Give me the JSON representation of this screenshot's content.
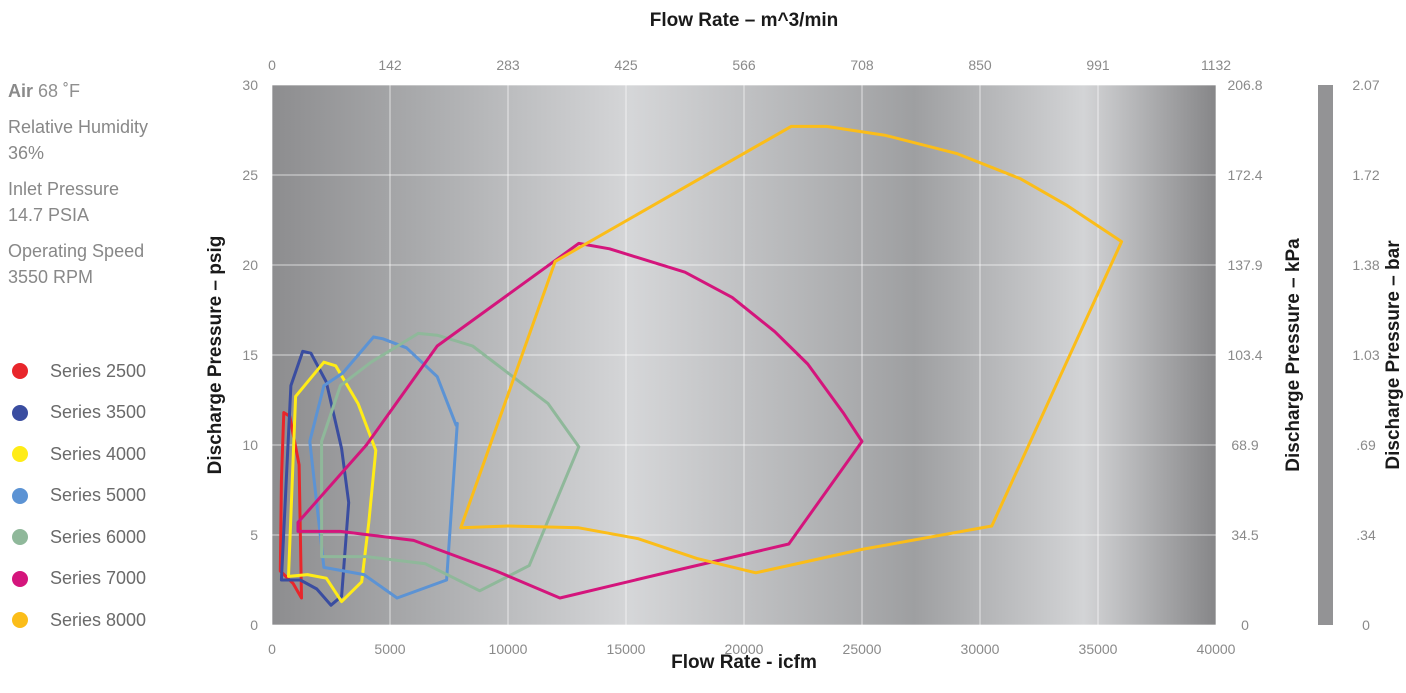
{
  "conditions": {
    "air_label": "Air",
    "air_value": "68 ˚F",
    "humidity_label": "Relative Humidity",
    "humidity_value": "36%",
    "inlet_label": "Inlet Pressure",
    "inlet_value": "14.7 PSIA",
    "speed_label": "Operating Speed",
    "speed_value": "3550 RPM"
  },
  "chart_data": {
    "type": "area",
    "title": "",
    "xlabel": "Flow Rate - icfm",
    "x2label": "Flow Rate – m^3/min",
    "ylabel": "Discharge Pressure – psig",
    "y2label": "Discharge Pressure – kPa",
    "y3label": "Discharge Pressure – bar",
    "xlim": [
      0,
      40000
    ],
    "ylim": [
      0,
      30
    ],
    "grid": true,
    "legend_position": "left",
    "x_ticks": [
      "0",
      "5000",
      "10000",
      "15000",
      "20000",
      "25000",
      "30000",
      "35000",
      "40000"
    ],
    "x_tick_values": [
      0,
      5000,
      10000,
      15000,
      20000,
      25000,
      30000,
      35000,
      40000
    ],
    "x2_ticks": [
      "0",
      "142",
      "283",
      "425",
      "566",
      "708",
      "850",
      "991",
      "1132"
    ],
    "y_ticks": [
      "0",
      "5",
      "10",
      "15",
      "20",
      "25",
      "30"
    ],
    "y_tick_values": [
      0,
      5,
      10,
      15,
      20,
      25,
      30
    ],
    "y2_ticks": [
      "0",
      "34.5",
      "68.9",
      "103.4",
      "137.9",
      "172.4",
      "206.8"
    ],
    "y3_ticks": [
      "0",
      ".34",
      ".69",
      "1.03",
      "1.38",
      "1.72",
      "2.07"
    ],
    "series": [
      {
        "name": "Series 2500",
        "color": "#e8262b",
        "points": [
          [
            500,
            11.8
          ],
          [
            750,
            11.6
          ],
          [
            1150,
            8.9
          ],
          [
            1250,
            1.5
          ],
          [
            900,
            2.3
          ],
          [
            350,
            3.0
          ],
          [
            400,
            8
          ],
          [
            500,
            11.8
          ]
        ]
      },
      {
        "name": "Series 3500",
        "color": "#3a4da0",
        "points": [
          [
            1300,
            15.2
          ],
          [
            1650,
            15.1
          ],
          [
            2300,
            13.5
          ],
          [
            2950,
            9.8
          ],
          [
            3250,
            6.8
          ],
          [
            2950,
            1.6
          ],
          [
            2500,
            1.1
          ],
          [
            1900,
            2.0
          ],
          [
            1200,
            2.5
          ],
          [
            400,
            2.5
          ],
          [
            800,
            13.3
          ],
          [
            1300,
            15.2
          ]
        ]
      },
      {
        "name": "Series 4000",
        "color": "#ffec16",
        "points": [
          [
            2200,
            14.6
          ],
          [
            2700,
            14.4
          ],
          [
            3650,
            12.3
          ],
          [
            4400,
            9.7
          ],
          [
            4100,
            5.7
          ],
          [
            3800,
            2.4
          ],
          [
            2950,
            1.3
          ],
          [
            2300,
            2.6
          ],
          [
            1500,
            2.8
          ],
          [
            700,
            2.7
          ],
          [
            1000,
            12.7
          ],
          [
            2200,
            14.6
          ]
        ]
      },
      {
        "name": "Series 5000",
        "color": "#5c93d4",
        "points": [
          [
            4300,
            16.0
          ],
          [
            4700,
            15.9
          ],
          [
            5700,
            15.4
          ],
          [
            7000,
            13.8
          ],
          [
            7800,
            11.1
          ],
          [
            7850,
            11.2
          ],
          [
            7400,
            2.5
          ],
          [
            5300,
            1.5
          ],
          [
            3900,
            2.8
          ],
          [
            2200,
            3.2
          ],
          [
            1600,
            10.2
          ],
          [
            2200,
            13.3
          ],
          [
            3000,
            14.0
          ],
          [
            4300,
            16.0
          ]
        ]
      },
      {
        "name": "Series 6000",
        "color": "#8fb89a",
        "points": [
          [
            6200,
            16.2
          ],
          [
            7000,
            16.1
          ],
          [
            8500,
            15.5
          ],
          [
            10200,
            13.8
          ],
          [
            11700,
            12.3
          ],
          [
            13000,
            9.9
          ],
          [
            10900,
            3.3
          ],
          [
            8800,
            1.9
          ],
          [
            6500,
            3.4
          ],
          [
            4000,
            3.8
          ],
          [
            2100,
            3.8
          ],
          [
            2100,
            10.2
          ],
          [
            2900,
            13.3
          ],
          [
            4200,
            14.6
          ],
          [
            6200,
            16.2
          ]
        ]
      },
      {
        "name": "Series 7000",
        "color": "#d4157c",
        "points": [
          [
            13000,
            21.2
          ],
          [
            14300,
            20.9
          ],
          [
            17500,
            19.6
          ],
          [
            19500,
            18.2
          ],
          [
            21300,
            16.3
          ],
          [
            22700,
            14.5
          ],
          [
            24200,
            11.8
          ],
          [
            25000,
            10.2
          ],
          [
            21900,
            4.5
          ],
          [
            17000,
            3.0
          ],
          [
            12200,
            1.5
          ],
          [
            9500,
            3.0
          ],
          [
            6000,
            4.7
          ],
          [
            2900,
            5.2
          ],
          [
            1100,
            5.2
          ],
          [
            1100,
            5.7
          ],
          [
            4000,
            10.0
          ],
          [
            7000,
            15.5
          ],
          [
            13000,
            21.2
          ]
        ]
      },
      {
        "name": "Series 8000",
        "color": "#fbbd19",
        "points": [
          [
            22000,
            27.7
          ],
          [
            23500,
            27.7
          ],
          [
            26000,
            27.2
          ],
          [
            29000,
            26.2
          ],
          [
            31700,
            24.8
          ],
          [
            33700,
            23.3
          ],
          [
            36000,
            21.3
          ],
          [
            30500,
            5.5
          ],
          [
            25000,
            4.2
          ],
          [
            20500,
            2.9
          ],
          [
            18000,
            3.7
          ],
          [
            15500,
            4.8
          ],
          [
            13000,
            5.4
          ],
          [
            10000,
            5.5
          ],
          [
            8000,
            5.4
          ],
          [
            12000,
            20.2
          ],
          [
            22000,
            27.7
          ]
        ]
      }
    ]
  }
}
